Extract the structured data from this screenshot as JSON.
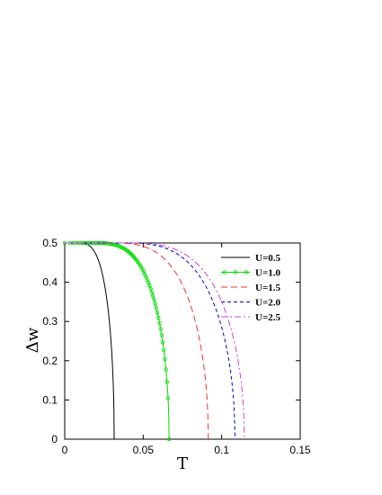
{
  "chart_data": {
    "type": "line",
    "xlabel": "T",
    "ylabel": "Δw",
    "xlim": [
      0,
      0.15
    ],
    "ylim": [
      0,
      0.5
    ],
    "xticks": [
      "0",
      "0.05",
      "0.1",
      "0.15"
    ],
    "yticks": [
      "0",
      "0.1",
      "0.2",
      "0.3",
      "0.4",
      "0.5"
    ],
    "legend_position": "top-right",
    "series": [
      {
        "name": "U=0.5",
        "color": "#000000",
        "dash": "solid",
        "marker": "none",
        "tc": 0.0315,
        "onset": 0.008
      },
      {
        "name": "U=1.0",
        "color": "#00dd00",
        "dash": "solid",
        "marker": "circle",
        "tc": 0.0665,
        "onset": 0.018
      },
      {
        "name": "U=1.5",
        "color": "#ee3333",
        "dash": "long-dash",
        "marker": "none",
        "tc": 0.0915,
        "onset": 0.028
      },
      {
        "name": "U=2.0",
        "color": "#0000cc",
        "dash": "short-dash",
        "marker": "none",
        "tc": 0.1085,
        "onset": 0.035
      },
      {
        "name": "U=2.5",
        "color": "#cc44cc",
        "dash": "dash-dot",
        "marker": "none",
        "tc": 0.1145,
        "onset": 0.038
      }
    ]
  }
}
